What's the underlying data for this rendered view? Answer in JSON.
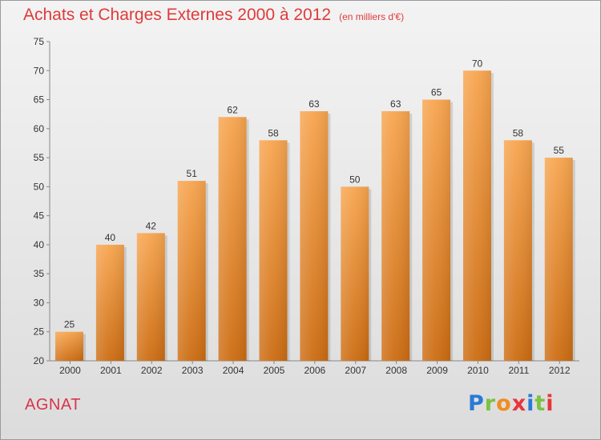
{
  "header": {
    "title": "Achats et Charges Externes 2000 à 2012",
    "subtitle": "(en milliers d'€)"
  },
  "footer": {
    "place": "AGNAT",
    "logo_letters": [
      "P",
      "r",
      "o",
      "x",
      "i",
      "t",
      "i"
    ]
  },
  "chart_data": {
    "type": "bar",
    "categories": [
      "2000",
      "2001",
      "2002",
      "2003",
      "2004",
      "2005",
      "2006",
      "2007",
      "2008",
      "2009",
      "2010",
      "2011",
      "2012"
    ],
    "values": [
      25,
      40,
      42,
      51,
      62,
      58,
      63,
      50,
      63,
      65,
      70,
      58,
      55
    ],
    "title": "Achats et Charges Externes 2000 à 2012",
    "subtitle": "(en milliers d'€)",
    "ylim": [
      20,
      75
    ],
    "yticks": [
      20,
      25,
      30,
      35,
      40,
      45,
      50,
      55,
      60,
      65,
      70,
      75
    ],
    "grid": false,
    "bar_color_top": "#f7a54f",
    "bar_color_bottom": "#cc6c12"
  }
}
